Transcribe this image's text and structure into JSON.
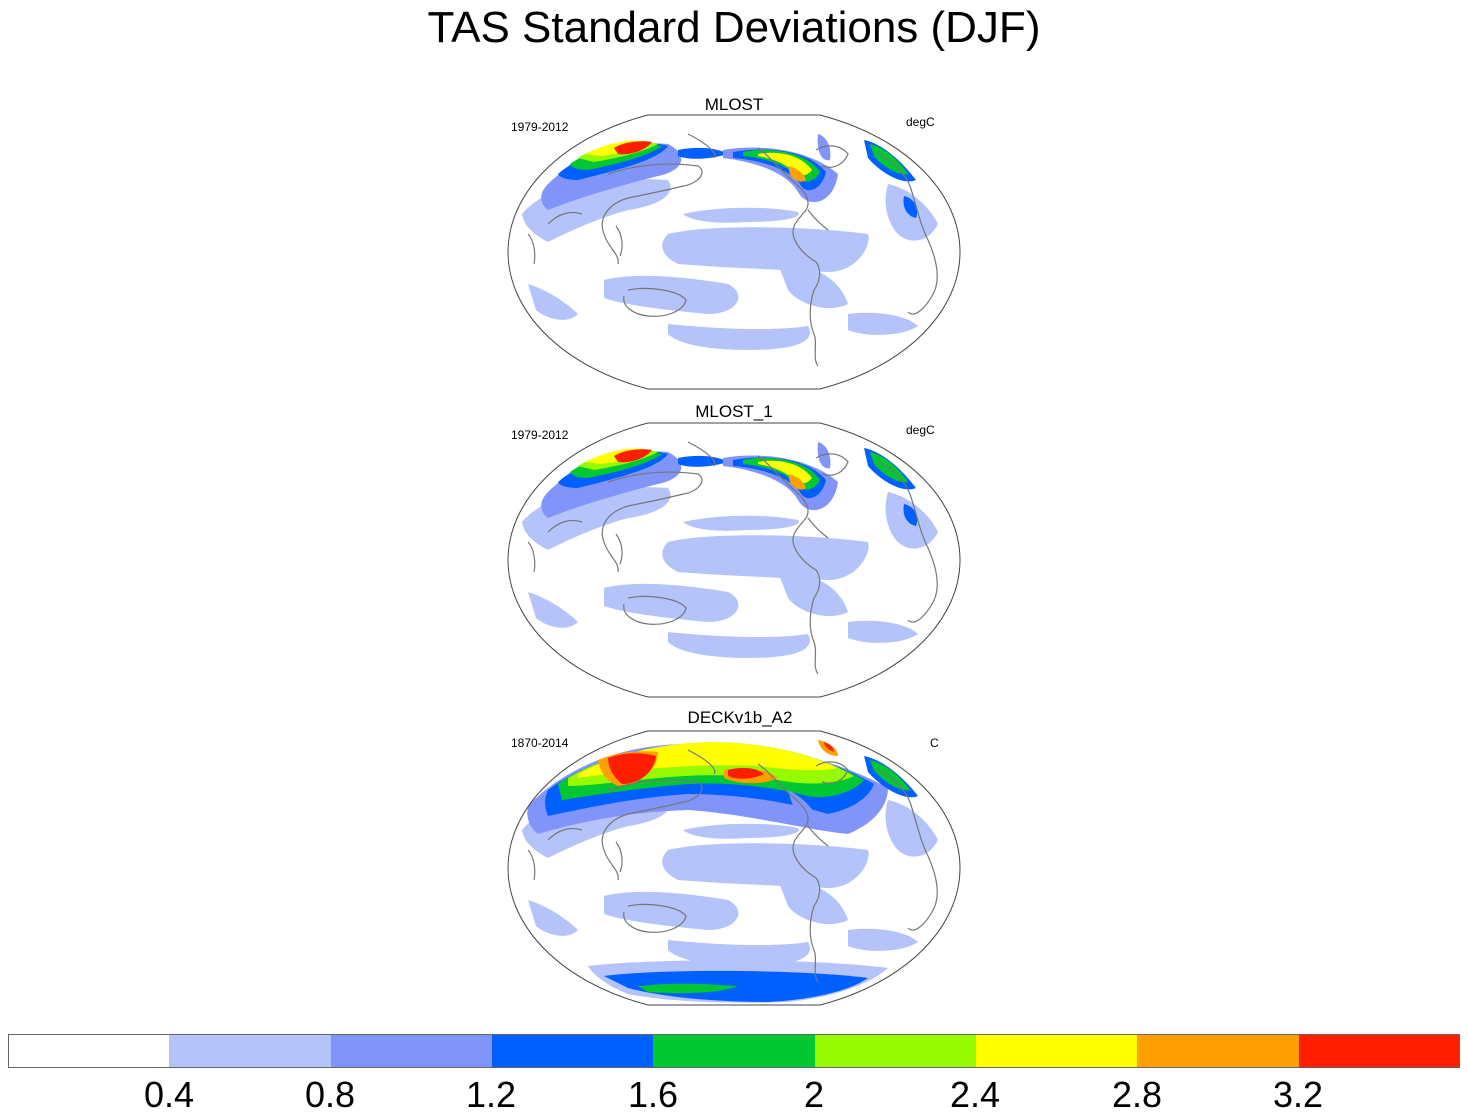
{
  "title": "TAS Standard Deviations (DJF)",
  "panels": [
    {
      "name": "MLOST",
      "period": "1979-2012",
      "units": "degC"
    },
    {
      "name": "MLOST_1",
      "period": "1979-2012",
      "units": "degC"
    },
    {
      "name": "DECKv1b_A2",
      "period": "1870-2014",
      "units": "C"
    }
  ],
  "colorbar": {
    "colors": [
      "#ffffff",
      "#b4c3fa",
      "#8094fa",
      "#0060ff",
      "#00c832",
      "#96fa00",
      "#ffff00",
      "#ffa000",
      "#ff1e00"
    ],
    "labels": [
      "0.4",
      "0.8",
      "1.2",
      "1.6",
      "2",
      "2.4",
      "2.8",
      "3.2"
    ]
  },
  "colors": {
    "coast": "#777777",
    "border": "#444444"
  }
}
